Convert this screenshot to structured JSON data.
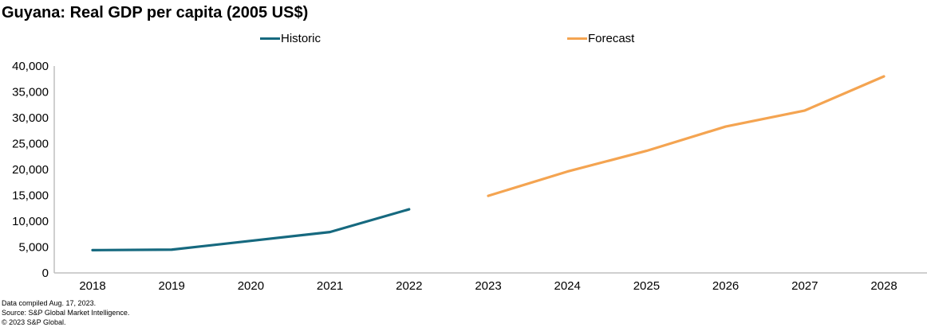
{
  "title": "Guyana: Real GDP per capita (2005 US$)",
  "legend": [
    {
      "label": "Historic",
      "color": "#16697F"
    },
    {
      "label": "Forecast",
      "color": "#F4A451"
    }
  ],
  "footnotes": [
    "Data compiled Aug. 17, 2023.",
    "Source: S&P Global Market Intelligence.",
    "© 2023 S&P Global."
  ],
  "chart_data": {
    "type": "line",
    "title": "Guyana: Real GDP per capita (2005 US$)",
    "xlabel": "",
    "ylabel": "",
    "categories": [
      "2018",
      "2019",
      "2020",
      "2021",
      "2022",
      "2023",
      "2024",
      "2025",
      "2026",
      "2027",
      "2028"
    ],
    "series": [
      {
        "name": "Historic",
        "color": "#16697F",
        "values": [
          4400,
          4500,
          6200,
          7900,
          12300,
          null,
          null,
          null,
          null,
          null,
          null
        ]
      },
      {
        "name": "Forecast",
        "color": "#F4A451",
        "values": [
          null,
          null,
          null,
          null,
          null,
          14900,
          19600,
          23600,
          28300,
          31400,
          38000
        ]
      }
    ],
    "ylim": [
      0,
      40000
    ],
    "y_tick_step": 5000,
    "y_tick_labels": [
      "0",
      "5,000",
      "10,000",
      "15,000",
      "20,000",
      "25,000",
      "30,000",
      "35,000",
      "40,000"
    ],
    "grid": false,
    "legend_position": "top",
    "axis_color": "#BFBFBF"
  }
}
